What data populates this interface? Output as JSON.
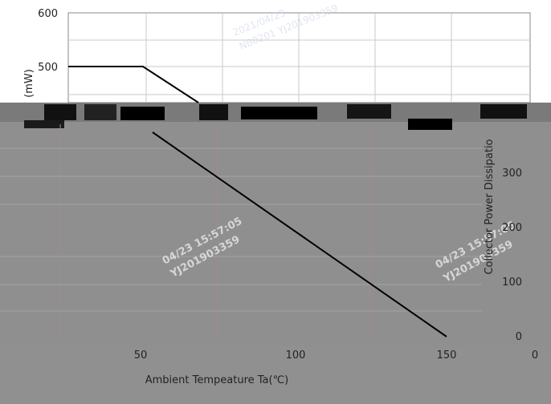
{
  "chart_data": {
    "type": "line",
    "title": "",
    "xlabel": "Ambient Tempeature Ta(℃)",
    "ylabel_left": "(mW)",
    "ylabel_right": "Collector Power Dissipatio",
    "x_ticks": [
      "50",
      "100",
      "150",
      "0"
    ],
    "y_ticks_top": [
      "600",
      "500"
    ],
    "y_ticks_bottom": [
      "300",
      "200",
      "100",
      "0"
    ],
    "xlim": [
      0,
      175
    ],
    "ylim": [
      0,
      600
    ],
    "grid": true,
    "series": [
      {
        "x": [
          0,
          50,
          150
        ],
        "y": [
          500,
          500,
          0
        ]
      }
    ]
  },
  "watermarks": [
    "2021/04/23",
    "NB0201 YJ201903359",
    "04/23 15:57:05",
    "YJ201903359"
  ],
  "colors": {
    "line": "#000000",
    "grid": "#c8c8c8",
    "plot_bg_top": "#ffffff",
    "plot_bg_bottom": "#8f8f8f"
  }
}
